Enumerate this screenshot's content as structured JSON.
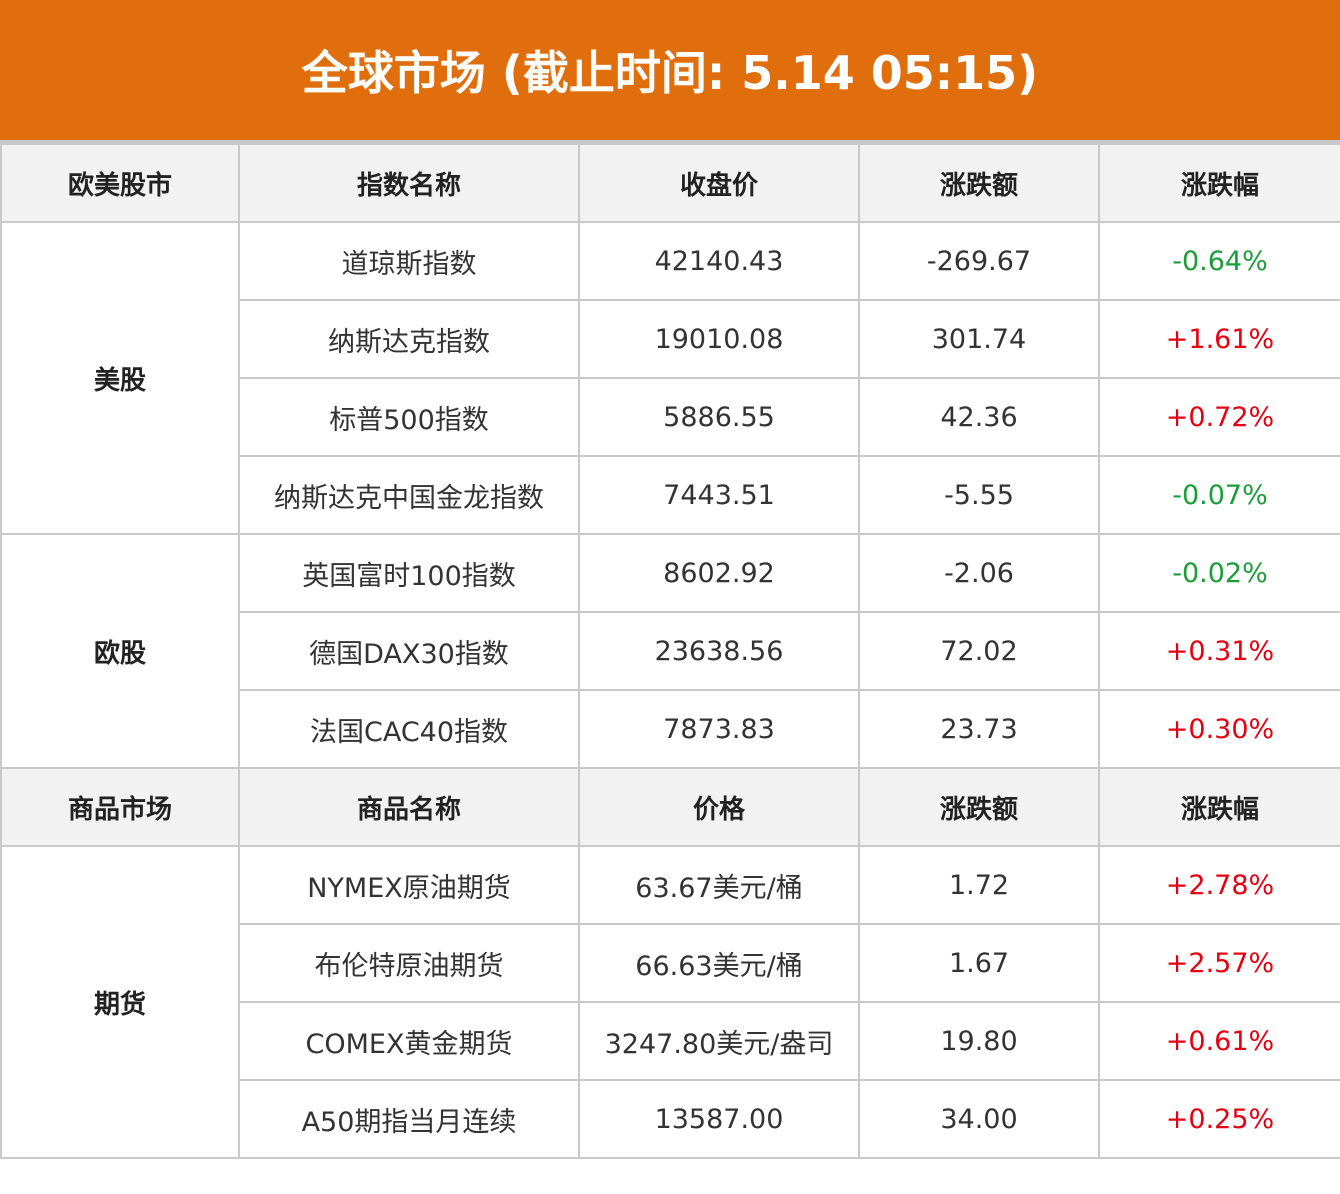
{
  "title": "全球市场 (截止时间: 5.14 05:15)",
  "colors": {
    "banner": "#e06e0d",
    "up": "#e60012",
    "down": "#1a9e3a",
    "header_bg": "#f2f2f2",
    "border": "#c9c9c9"
  },
  "stocks": {
    "headers": [
      "欧美股市",
      "指数名称",
      "收盘价",
      "涨跌额",
      "涨跌幅"
    ],
    "groups": [
      {
        "name": "美股",
        "rows": [
          {
            "name": "道琼斯指数",
            "price": "42140.43",
            "change": "-269.67",
            "pct": "-0.64%"
          },
          {
            "name": "纳斯达克指数",
            "price": "19010.08",
            "change": "301.74",
            "pct": "+1.61%"
          },
          {
            "name": "标普500指数",
            "price": "5886.55",
            "change": "42.36",
            "pct": "+0.72%"
          },
          {
            "name": "纳斯达克中国金龙指数",
            "price": "7443.51",
            "change": "-5.55",
            "pct": "-0.07%"
          }
        ]
      },
      {
        "name": "欧股",
        "rows": [
          {
            "name": "英国富时100指数",
            "price": "8602.92",
            "change": "-2.06",
            "pct": "-0.02%"
          },
          {
            "name": "德国DAX30指数",
            "price": "23638.56",
            "change": "72.02",
            "pct": "+0.31%"
          },
          {
            "name": "法国CAC40指数",
            "price": "7873.83",
            "change": "23.73",
            "pct": "+0.30%"
          }
        ]
      }
    ]
  },
  "commodities": {
    "headers": [
      "商品市场",
      "商品名称",
      "价格",
      "涨跌额",
      "涨跌幅"
    ],
    "groups": [
      {
        "name": "期货",
        "rows": [
          {
            "name": "NYMEX原油期货",
            "price": "63.67美元/桶",
            "change": "1.72",
            "pct": "+2.78%"
          },
          {
            "name": "布伦特原油期货",
            "price": "66.63美元/桶",
            "change": "1.67",
            "pct": "+2.57%"
          },
          {
            "name": "COMEX黄金期货",
            "price": "3247.80美元/盎司",
            "change": "19.80",
            "pct": "+0.61%"
          },
          {
            "name": "A50期指当月连续",
            "price": "13587.00",
            "change": "34.00",
            "pct": "+0.25%"
          }
        ]
      }
    ]
  }
}
